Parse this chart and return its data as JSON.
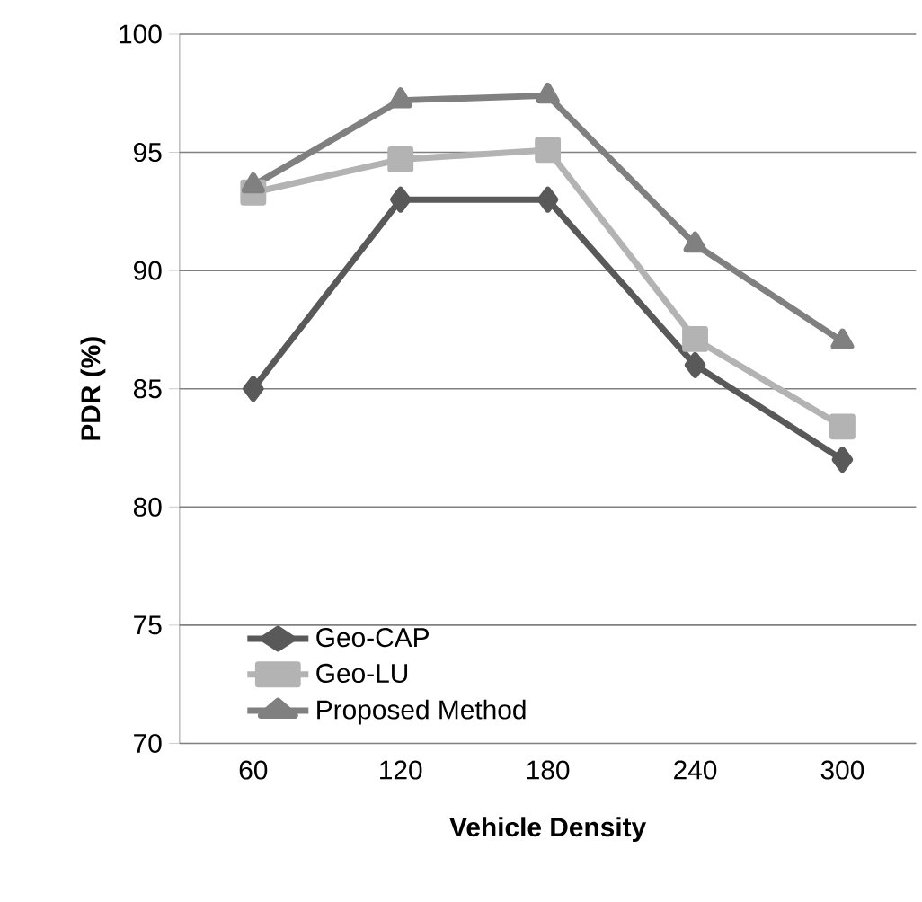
{
  "chart_data": {
    "type": "line",
    "xlabel": "Vehicle Density",
    "ylabel": "PDR (%)",
    "categories": [
      "60",
      "120",
      "180",
      "240",
      "300"
    ],
    "series": [
      {
        "name": "Geo-CAP",
        "color": "#595959",
        "marker": "diamond",
        "values": [
          85,
          93,
          93,
          86,
          82
        ]
      },
      {
        "name": "Geo-LU",
        "color": "#b3b3b3",
        "marker": "square",
        "values": [
          93.3,
          94.7,
          95.1,
          87.1,
          83.4
        ]
      },
      {
        "name": "Proposed Method",
        "color": "#808080",
        "marker": "triangle",
        "values": [
          93.6,
          97.2,
          97.4,
          91.1,
          87
        ]
      }
    ],
    "ylim": [
      70,
      100
    ],
    "yticks": [
      70,
      75,
      80,
      85,
      90,
      95,
      100
    ],
    "grid": "y",
    "legend": "bottom left",
    "line_style": "solid"
  }
}
